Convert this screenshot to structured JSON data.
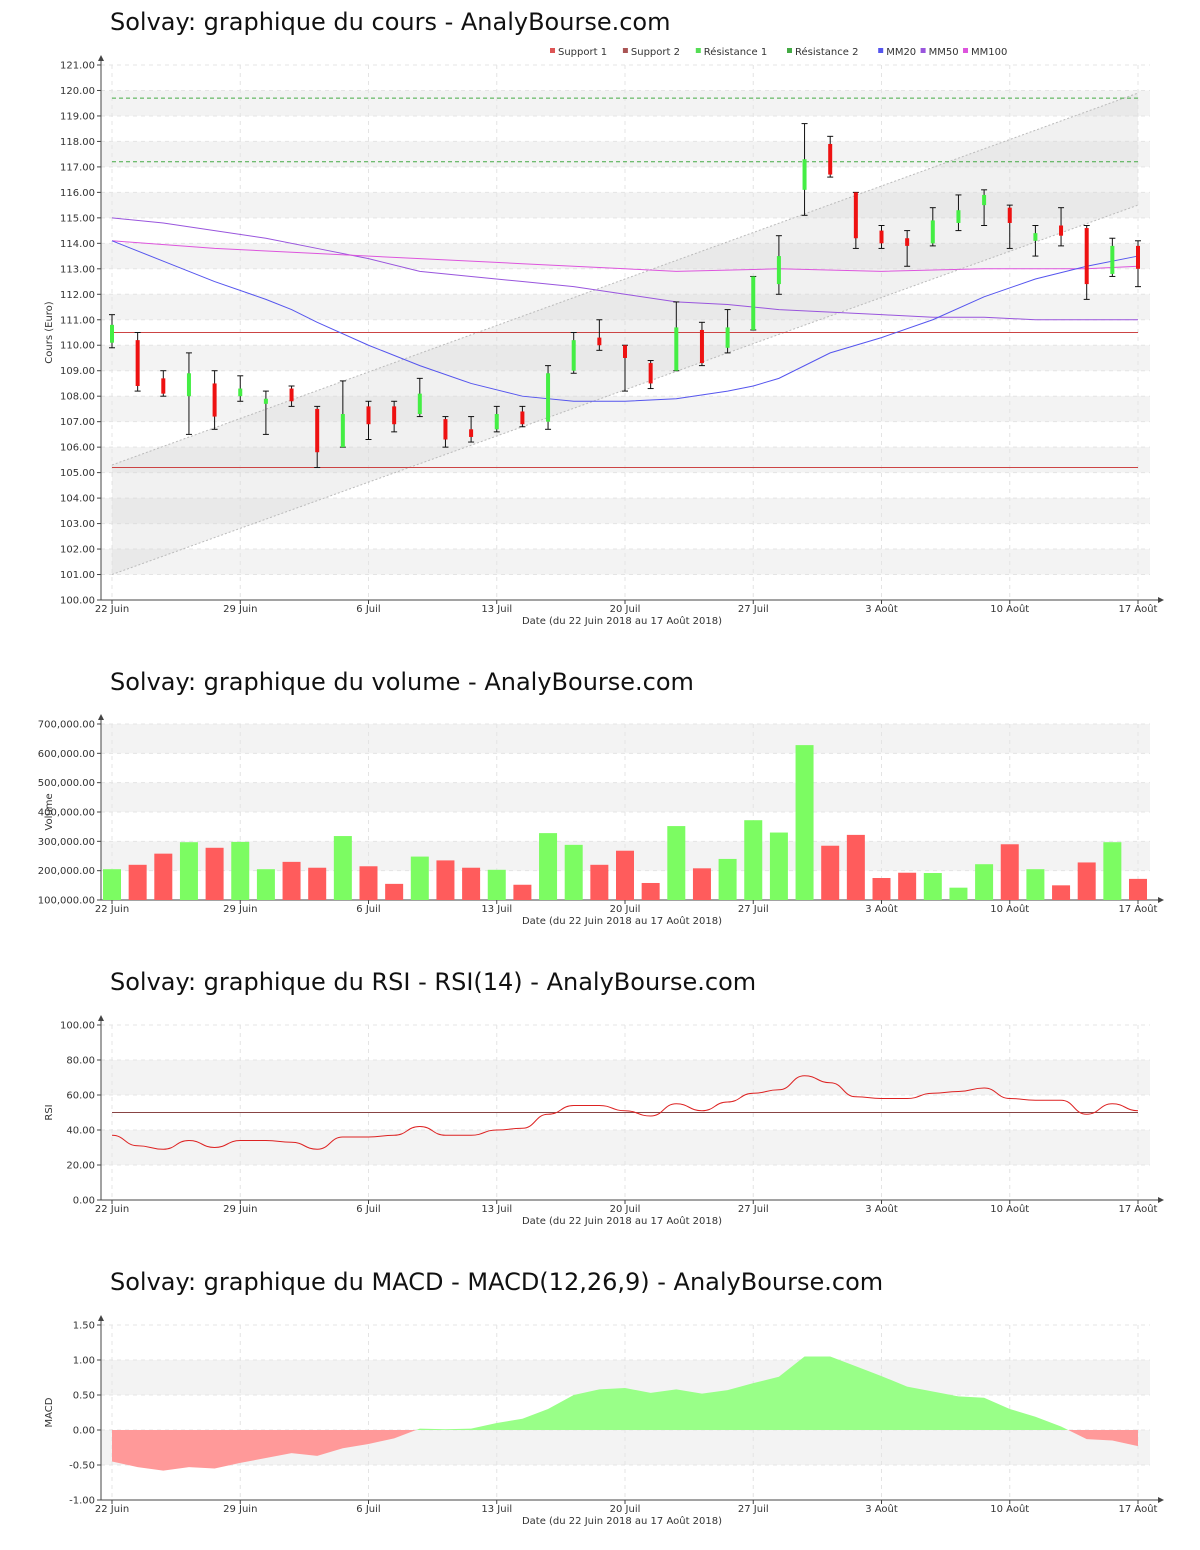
{
  "titles": {
    "price": "Solvay: graphique du cours - AnalyBourse.com",
    "volume": "Solvay: graphique du volume - AnalyBourse.com",
    "rsi": "Solvay: graphique du RSI - RSI(14) - AnalyBourse.com",
    "macd": "Solvay: graphique du MACD - MACD(12,26,9) - AnalyBourse.com"
  },
  "xlabel": "Date (du 22 Juin 2018 au 17 Août 2018)",
  "x_ticks": [
    "22 Juin",
    "29 Juin",
    "6 Juil",
    "13 Juil",
    "20 Juil",
    "27 Juil",
    "3 Août",
    "10 Août",
    "17 Août"
  ],
  "x_tick_days": [
    0,
    5,
    10,
    15,
    20,
    25,
    30,
    35,
    40
  ],
  "colors": {
    "up": "#44ee44",
    "down": "#ee1111",
    "vol_up": "#7cfc62",
    "vol_down": "#ff5c5c",
    "support": "#cc4444",
    "resistance": "#44aa44",
    "mm20": "#5555ee",
    "mm50": "#9955dd",
    "mm100": "#dd55dd",
    "rsi": "#dd2222",
    "macd_pos": "#99ff88",
    "macd_neg": "#ff9999"
  },
  "chart_data": [
    {
      "type": "candlestick",
      "ylabel": "Cours (Euro)",
      "ylim": [
        100,
        121
      ],
      "y_ticks": [
        "100.00",
        "101.00",
        "102.00",
        "103.00",
        "104.00",
        "105.00",
        "106.00",
        "107.00",
        "108.00",
        "109.00",
        "110.00",
        "111.00",
        "112.00",
        "113.00",
        "114.00",
        "115.00",
        "116.00",
        "117.00",
        "118.00",
        "119.00",
        "120.00",
        "121.00"
      ],
      "legend": [
        "Support 1",
        "Support 2",
        "Résistance 1",
        "Résistance 2",
        "MM20",
        "MM50",
        "MM100"
      ],
      "legend_colors": [
        "#dd5555",
        "#aa5555",
        "#55dd55",
        "#44aa44",
        "#5555ee",
        "#9955dd",
        "#dd55dd"
      ],
      "levels": {
        "support1": 105.2,
        "support2": 110.5,
        "resistance1": 117.2,
        "resistance2": 119.7
      },
      "channel": {
        "lower": [
          [
            0,
            101.0
          ],
          [
            40,
            115.5
          ]
        ],
        "upper": [
          [
            0,
            105.3
          ],
          [
            40,
            119.9
          ]
        ]
      },
      "candles": [
        {
          "open": 110.1,
          "close": 110.8,
          "high": 111.2,
          "low": 109.9
        },
        {
          "open": 110.2,
          "close": 108.4,
          "high": 110.5,
          "low": 108.2
        },
        {
          "open": 108.7,
          "close": 108.1,
          "high": 109.0,
          "low": 108.0
        },
        {
          "open": 108.0,
          "close": 108.9,
          "high": 109.7,
          "low": 106.5
        },
        {
          "open": 108.5,
          "close": 107.2,
          "high": 109.0,
          "low": 106.7
        },
        {
          "open": 108.0,
          "close": 108.3,
          "high": 108.8,
          "low": 107.8
        },
        {
          "open": 107.7,
          "close": 107.9,
          "high": 108.2,
          "low": 106.5
        },
        {
          "open": 108.3,
          "close": 107.8,
          "high": 108.4,
          "low": 107.6
        },
        {
          "open": 107.5,
          "close": 105.8,
          "high": 107.6,
          "low": 105.2
        },
        {
          "open": 106.0,
          "close": 107.3,
          "high": 108.6,
          "low": 106.0
        },
        {
          "open": 107.6,
          "close": 106.9,
          "high": 107.8,
          "low": 106.3
        },
        {
          "open": 107.6,
          "close": 106.9,
          "high": 107.8,
          "low": 106.6
        },
        {
          "open": 107.3,
          "close": 108.1,
          "high": 108.7,
          "low": 107.2
        },
        {
          "open": 107.1,
          "close": 106.3,
          "high": 107.2,
          "low": 106.0
        },
        {
          "open": 106.7,
          "close": 106.4,
          "high": 107.2,
          "low": 106.2
        },
        {
          "open": 106.7,
          "close": 107.3,
          "high": 107.6,
          "low": 106.6
        },
        {
          "open": 107.4,
          "close": 106.9,
          "high": 107.6,
          "low": 106.8
        },
        {
          "open": 107.0,
          "close": 108.9,
          "high": 109.2,
          "low": 106.7
        },
        {
          "open": 109.0,
          "close": 110.2,
          "high": 110.5,
          "low": 108.9
        },
        {
          "open": 110.3,
          "close": 110.0,
          "high": 111.0,
          "low": 109.8
        },
        {
          "open": 110.0,
          "close": 109.5,
          "high": 110.0,
          "low": 108.2
        },
        {
          "open": 109.3,
          "close": 108.5,
          "high": 109.4,
          "low": 108.3
        },
        {
          "open": 109.0,
          "close": 110.7,
          "high": 111.7,
          "low": 109.0
        },
        {
          "open": 110.6,
          "close": 109.3,
          "high": 110.9,
          "low": 109.2
        },
        {
          "open": 109.9,
          "close": 110.7,
          "high": 111.4,
          "low": 109.7
        },
        {
          "open": 110.6,
          "close": 112.7,
          "high": 112.7,
          "low": 110.6
        },
        {
          "open": 112.4,
          "close": 113.5,
          "high": 114.3,
          "low": 112.0
        },
        {
          "open": 116.1,
          "close": 117.3,
          "high": 118.7,
          "low": 115.1
        },
        {
          "open": 117.9,
          "close": 116.7,
          "high": 118.2,
          "low": 116.6
        },
        {
          "open": 116.0,
          "close": 114.2,
          "high": 116.0,
          "low": 113.8
        },
        {
          "open": 114.5,
          "close": 114.0,
          "high": 114.7,
          "low": 113.8
        },
        {
          "open": 114.2,
          "close": 113.9,
          "high": 114.5,
          "low": 113.1
        },
        {
          "open": 114.0,
          "close": 114.9,
          "high": 115.4,
          "low": 113.9
        },
        {
          "open": 114.8,
          "close": 115.3,
          "high": 115.9,
          "low": 114.5
        },
        {
          "open": 115.5,
          "close": 115.9,
          "high": 116.1,
          "low": 114.7
        },
        {
          "open": 115.4,
          "close": 114.8,
          "high": 115.5,
          "low": 113.8
        },
        {
          "open": 114.1,
          "close": 114.4,
          "high": 114.7,
          "low": 113.5
        },
        {
          "open": 114.7,
          "close": 114.3,
          "high": 115.4,
          "low": 113.9
        },
        {
          "open": 114.6,
          "close": 112.4,
          "high": 114.7,
          "low": 111.8
        },
        {
          "open": 112.8,
          "close": 113.9,
          "high": 114.2,
          "low": 112.7
        },
        {
          "open": 113.9,
          "close": 113.0,
          "high": 114.1,
          "low": 112.3
        }
      ],
      "mm20": [
        [
          0,
          114.1
        ],
        [
          2,
          113.3
        ],
        [
          4,
          112.5
        ],
        [
          6,
          111.8
        ],
        [
          7,
          111.4
        ],
        [
          8,
          110.9
        ],
        [
          10,
          110.0
        ],
        [
          12,
          109.2
        ],
        [
          14,
          108.5
        ],
        [
          16,
          108.0
        ],
        [
          18,
          107.8
        ],
        [
          20,
          107.8
        ],
        [
          22,
          107.9
        ],
        [
          24,
          108.2
        ],
        [
          25,
          108.4
        ],
        [
          26,
          108.7
        ],
        [
          27,
          109.2
        ],
        [
          28,
          109.7
        ],
        [
          30,
          110.3
        ],
        [
          32,
          111.0
        ],
        [
          34,
          111.9
        ],
        [
          36,
          112.6
        ],
        [
          38,
          113.1
        ],
        [
          40,
          113.5
        ]
      ],
      "mm50": [
        [
          0,
          115.0
        ],
        [
          2,
          114.8
        ],
        [
          4,
          114.5
        ],
        [
          6,
          114.2
        ],
        [
          8,
          113.8
        ],
        [
          10,
          113.4
        ],
        [
          12,
          112.9
        ],
        [
          14,
          112.7
        ],
        [
          16,
          112.5
        ],
        [
          18,
          112.3
        ],
        [
          20,
          112.0
        ],
        [
          22,
          111.7
        ],
        [
          24,
          111.6
        ],
        [
          26,
          111.4
        ],
        [
          28,
          111.3
        ],
        [
          30,
          111.2
        ],
        [
          32,
          111.1
        ],
        [
          34,
          111.1
        ],
        [
          36,
          111.0
        ],
        [
          38,
          111.0
        ],
        [
          40,
          111.0
        ]
      ],
      "mm100": [
        [
          0,
          114.1
        ],
        [
          4,
          113.8
        ],
        [
          8,
          113.6
        ],
        [
          12,
          113.4
        ],
        [
          16,
          113.2
        ],
        [
          20,
          113.0
        ],
        [
          22,
          112.9
        ],
        [
          26,
          113.0
        ],
        [
          30,
          112.9
        ],
        [
          34,
          113.0
        ],
        [
          38,
          113.0
        ],
        [
          40,
          113.1
        ]
      ]
    },
    {
      "type": "bar",
      "ylabel": "Volume",
      "ylim": [
        100000,
        700000
      ],
      "y_ticks": [
        "100,000.00",
        "200,000.00",
        "300,000.00",
        "400,000.00",
        "500,000.00",
        "600,000.00",
        "700,000.00"
      ],
      "values": [
        205000,
        220000,
        258000,
        297000,
        278000,
        298000,
        205000,
        230000,
        210000,
        318000,
        215000,
        155000,
        248000,
        235000,
        210000,
        203000,
        152000,
        328000,
        288000,
        220000,
        268000,
        158000,
        352000,
        208000,
        240000,
        372000,
        330000,
        628000,
        285000,
        322000,
        175000,
        193000,
        192000,
        142000,
        222000,
        290000,
        205000,
        150000,
        228000,
        297000,
        172000
      ],
      "direction": [
        "up",
        "down",
        "down",
        "up",
        "down",
        "up",
        "up",
        "down",
        "down",
        "up",
        "down",
        "down",
        "up",
        "down",
        "down",
        "up",
        "down",
        "up",
        "up",
        "down",
        "down",
        "down",
        "up",
        "down",
        "up",
        "up",
        "up",
        "up",
        "down",
        "down",
        "down",
        "down",
        "up",
        "up",
        "up",
        "down",
        "up",
        "down",
        "down",
        "up",
        "down"
      ]
    },
    {
      "type": "line",
      "ylabel": "RSI",
      "ylim": [
        0,
        100
      ],
      "y_ticks": [
        "0.00",
        "20.00",
        "40.00",
        "60.00",
        "80.00",
        "100.00"
      ],
      "reference": 50,
      "values": [
        37,
        31,
        29,
        34,
        30,
        34,
        34,
        33,
        29,
        36,
        36,
        37,
        42,
        37,
        37,
        40,
        41,
        49,
        54,
        54,
        51,
        48,
        55,
        51,
        56,
        61,
        63,
        71,
        67,
        59,
        58,
        58,
        61,
        62,
        64,
        58,
        57,
        57,
        49,
        55,
        51
      ]
    },
    {
      "type": "area",
      "ylabel": "MACD",
      "ylim": [
        -1.0,
        1.5
      ],
      "y_ticks": [
        "-1.00",
        "-0.50",
        "0.00",
        "0.50",
        "1.00",
        "1.50"
      ],
      "values": [
        -0.45,
        -0.53,
        -0.58,
        -0.53,
        -0.55,
        -0.47,
        -0.4,
        -0.33,
        -0.37,
        -0.26,
        -0.2,
        -0.12,
        0.02,
        0.01,
        0.02,
        0.1,
        0.16,
        0.3,
        0.5,
        0.58,
        0.6,
        0.53,
        0.58,
        0.52,
        0.57,
        0.67,
        0.76,
        1.05,
        1.05,
        0.91,
        0.77,
        0.62,
        0.55,
        0.48,
        0.46,
        0.3,
        0.19,
        0.05,
        -0.13,
        -0.15,
        -0.23
      ]
    }
  ]
}
